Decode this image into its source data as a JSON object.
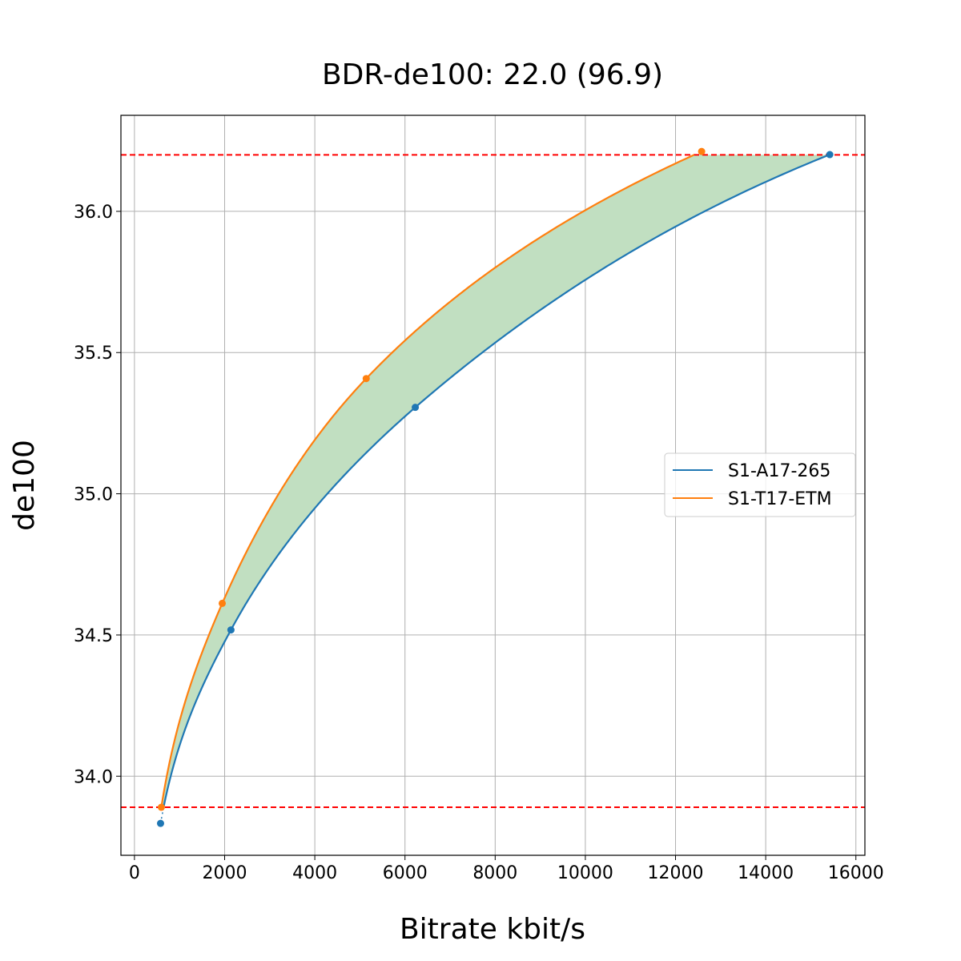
{
  "chart_data": {
    "type": "line",
    "title": "BDR-de100: 22.0 (96.9)",
    "xlabel": "Bitrate kbit/s",
    "ylabel": "de100",
    "xlim": [
      -300,
      16200
    ],
    "ylim": [
      33.72,
      36.34
    ],
    "xticks": [
      0,
      2000,
      4000,
      6000,
      8000,
      10000,
      12000,
      14000,
      16000
    ],
    "xtick_labels": [
      "0",
      "2000",
      "4000",
      "6000",
      "8000",
      "10000",
      "12000",
      "14000",
      "16000"
    ],
    "yticks": [
      34.0,
      34.5,
      35.0,
      35.5,
      36.0
    ],
    "ytick_labels": [
      "34.0",
      "34.5",
      "35.0",
      "35.5",
      "36.0"
    ],
    "grid": true,
    "legend_position": "center-right",
    "series": [
      {
        "name": "S1-A17-265",
        "color": "#1f77b4",
        "x": [
          579,
          2140,
          6228,
          15421
        ],
        "y": [
          33.833,
          34.518,
          35.306,
          36.201
        ]
      },
      {
        "name": "S1-T17-ETM",
        "color": "#ff7f0e",
        "x": [
          596,
          1947,
          5140,
          12579
        ],
        "y": [
          33.89,
          34.612,
          35.408,
          36.212
        ]
      }
    ],
    "reference_lines": [
      {
        "orientation": "horizontal",
        "y": 33.89,
        "color": "#ff0000",
        "style": "dashed"
      },
      {
        "orientation": "horizontal",
        "y": 36.2,
        "color": "#ff0000",
        "style": "dashed"
      }
    ],
    "fill_between": {
      "color": "#c1dfc1",
      "y_range": [
        33.89,
        36.2
      ]
    }
  }
}
